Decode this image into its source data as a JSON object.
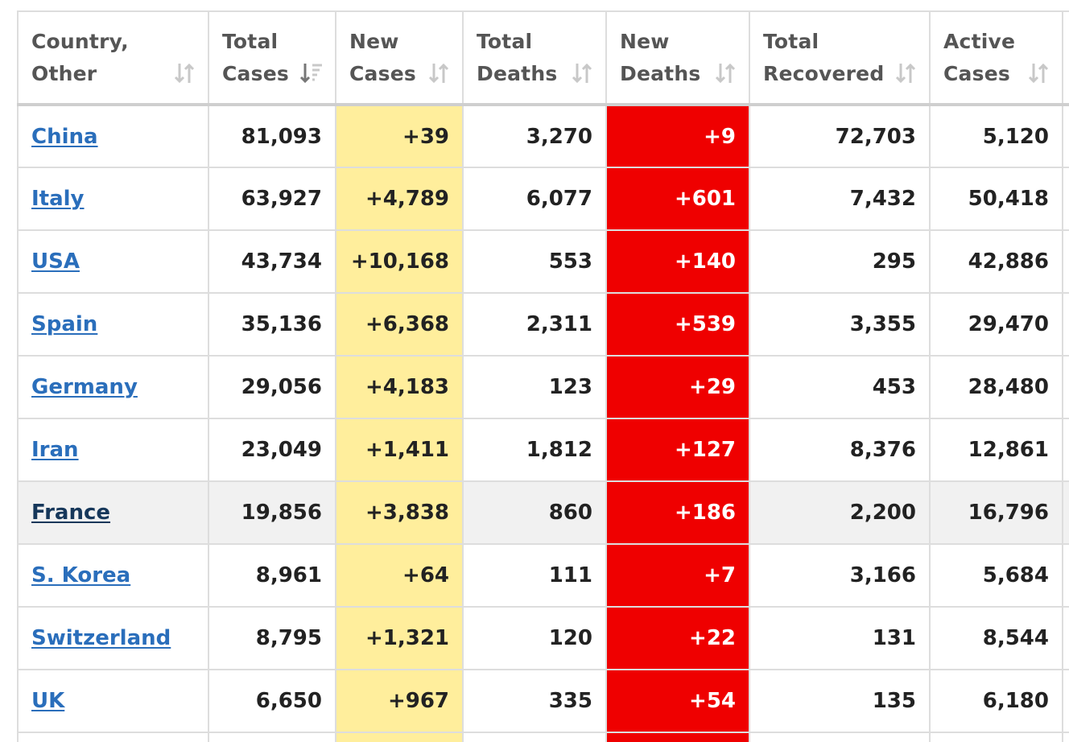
{
  "columns": [
    {
      "line1": "Country,",
      "line2": "Other",
      "sort_icon": "sort-neutral-icon"
    },
    {
      "line1": "Total",
      "line2": "Cases",
      "sort_icon": "sort-descending-icon"
    },
    {
      "line1": "New",
      "line2": "Cases",
      "sort_icon": "sort-neutral-icon"
    },
    {
      "line1": "Total",
      "line2": "Deaths",
      "sort_icon": "sort-neutral-icon"
    },
    {
      "line1": "New",
      "line2": "Deaths",
      "sort_icon": "sort-neutral-icon"
    },
    {
      "line1": "Total",
      "line2": "Recovered",
      "sort_icon": "sort-neutral-icon"
    },
    {
      "line1": "Active",
      "line2": "Cases",
      "sort_icon": "sort-neutral-icon"
    }
  ],
  "rows": [
    {
      "country": "China",
      "total_cases": "81,093",
      "new_cases": "+39",
      "total_deaths": "3,270",
      "new_deaths": "+9",
      "total_recovered": "72,703",
      "active_cases": "5,120"
    },
    {
      "country": "Italy",
      "total_cases": "63,927",
      "new_cases": "+4,789",
      "total_deaths": "6,077",
      "new_deaths": "+601",
      "total_recovered": "7,432",
      "active_cases": "50,418"
    },
    {
      "country": "USA",
      "total_cases": "43,734",
      "new_cases": "+10,168",
      "total_deaths": "553",
      "new_deaths": "+140",
      "total_recovered": "295",
      "active_cases": "42,886"
    },
    {
      "country": "Spain",
      "total_cases": "35,136",
      "new_cases": "+6,368",
      "total_deaths": "2,311",
      "new_deaths": "+539",
      "total_recovered": "3,355",
      "active_cases": "29,470"
    },
    {
      "country": "Germany",
      "total_cases": "29,056",
      "new_cases": "+4,183",
      "total_deaths": "123",
      "new_deaths": "+29",
      "total_recovered": "453",
      "active_cases": "28,480"
    },
    {
      "country": "Iran",
      "total_cases": "23,049",
      "new_cases": "+1,411",
      "total_deaths": "1,812",
      "new_deaths": "+127",
      "total_recovered": "8,376",
      "active_cases": "12,861"
    },
    {
      "country": "France",
      "total_cases": "19,856",
      "new_cases": "+3,838",
      "total_deaths": "860",
      "new_deaths": "+186",
      "total_recovered": "2,200",
      "active_cases": "16,796",
      "highlighted": true
    },
    {
      "country": "S. Korea",
      "total_cases": "8,961",
      "new_cases": "+64",
      "total_deaths": "111",
      "new_deaths": "+7",
      "total_recovered": "3,166",
      "active_cases": "5,684"
    },
    {
      "country": "Switzerland",
      "total_cases": "8,795",
      "new_cases": "+1,321",
      "total_deaths": "120",
      "new_deaths": "+22",
      "total_recovered": "131",
      "active_cases": "8,544"
    },
    {
      "country": "UK",
      "total_cases": "6,650",
      "new_cases": "+967",
      "total_deaths": "335",
      "new_deaths": "+54",
      "total_recovered": "135",
      "active_cases": "6,180"
    }
  ],
  "colors": {
    "link": "#2a6ebb",
    "new_cases_bg": "#ffee9c",
    "new_deaths_bg": "#ef0000",
    "row_highlight": "#f1f1f1"
  }
}
